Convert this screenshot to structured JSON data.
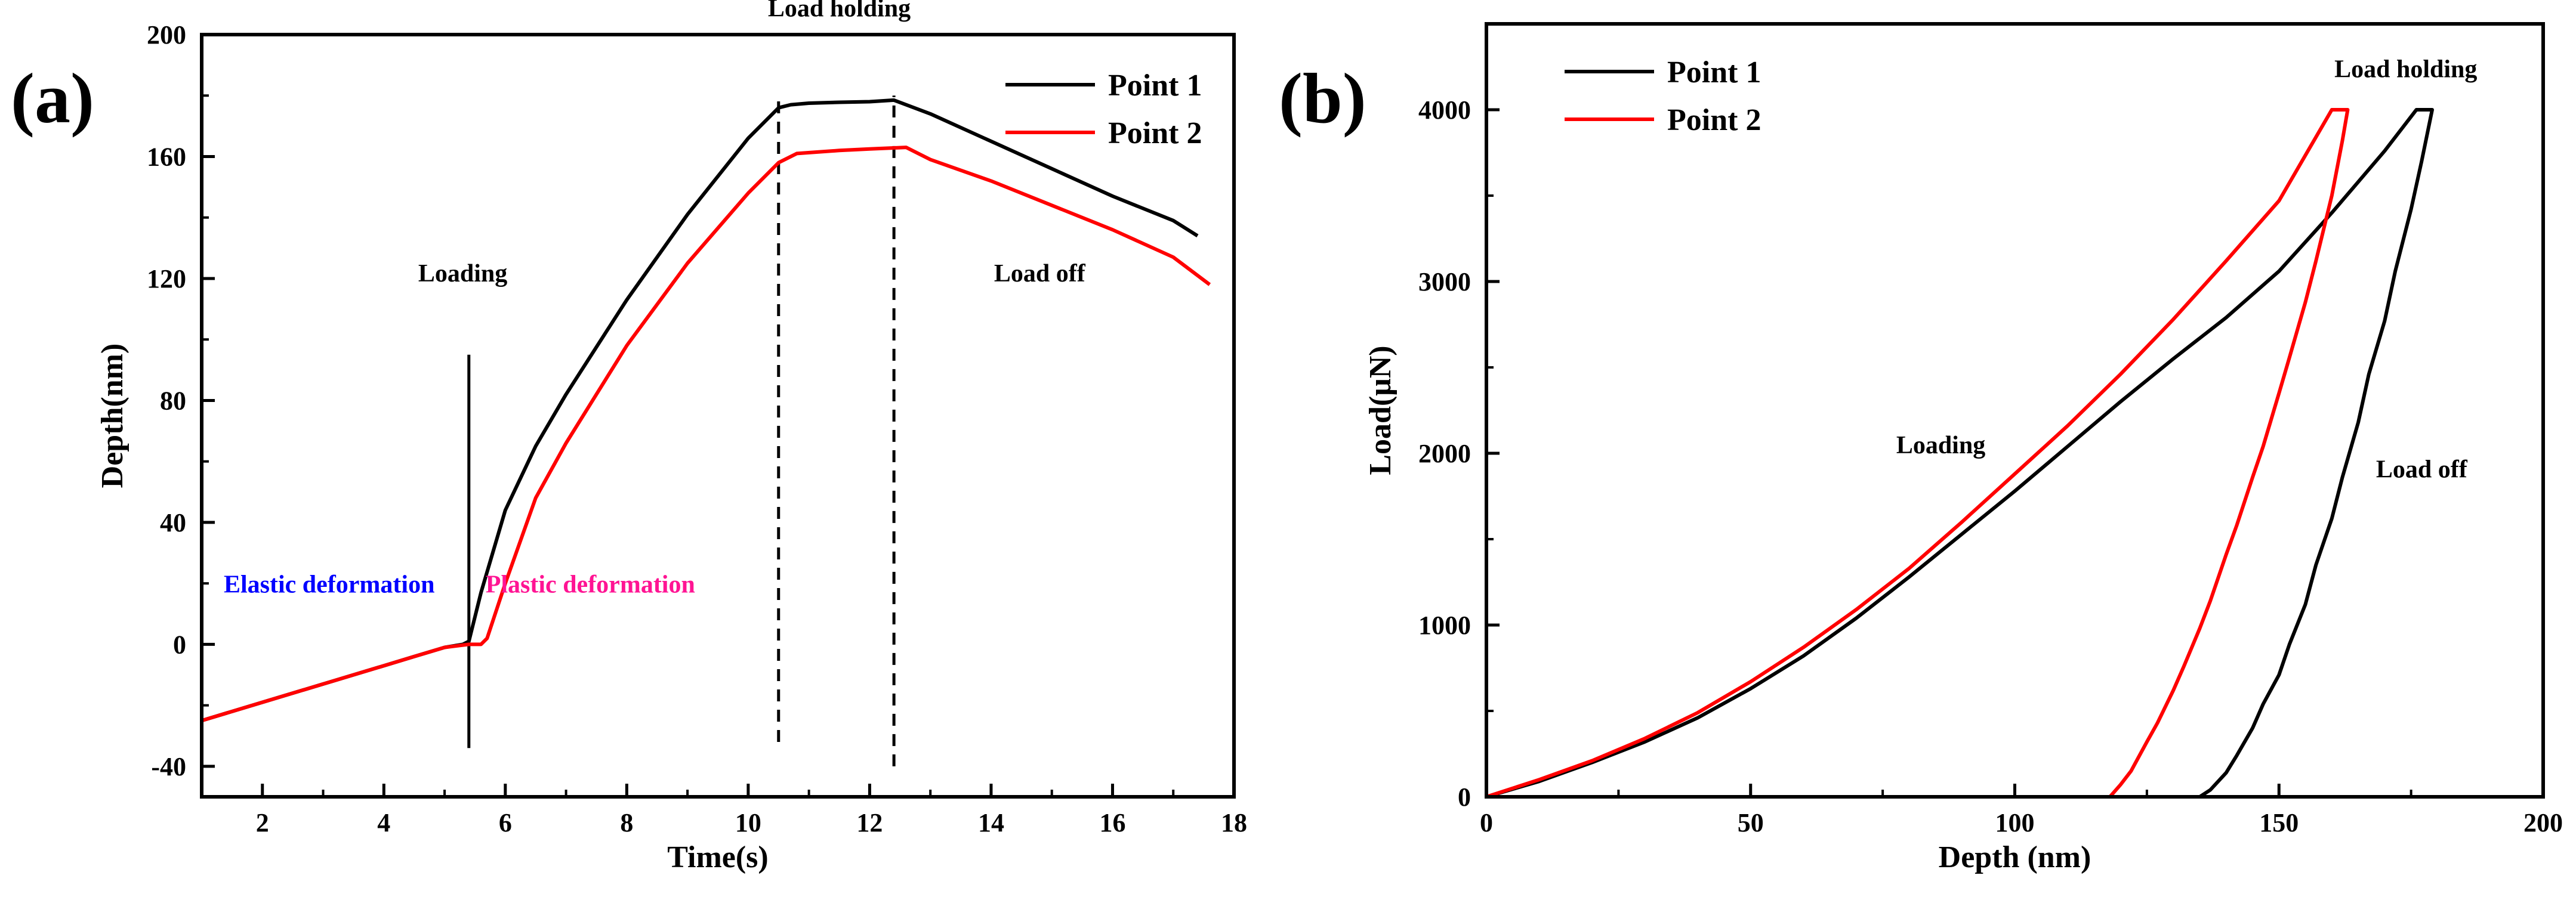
{
  "chart_data": [
    {
      "type": "line",
      "panel_label": "(a)",
      "title": "",
      "xlabel": "Time(s)",
      "ylabel": "Depth(nm)",
      "xlim": [
        1,
        18
      ],
      "ylim": [
        -50,
        200
      ],
      "xticks": [
        2,
        4,
        6,
        8,
        10,
        12,
        14,
        16,
        18
      ],
      "yticks": [
        -40,
        0,
        40,
        80,
        120,
        160,
        200
      ],
      "legend_position": "top-right",
      "series": [
        {
          "name": "Point 1",
          "color": "#000000",
          "x": [
            1.0,
            2.0,
            3.0,
            4.0,
            4.5,
            5.0,
            5.3,
            5.4,
            5.6,
            6.0,
            6.5,
            7.0,
            8.0,
            9.0,
            10.0,
            10.5,
            10.7,
            11.0,
            11.5,
            12.0,
            12.4,
            13.0,
            14.0,
            15.0,
            16.0,
            17.0,
            17.4
          ],
          "y": [
            -25,
            -19,
            -13,
            -7,
            -4,
            -1,
            0,
            1,
            17,
            44,
            65,
            82,
            113,
            141,
            166,
            176,
            177,
            177.5,
            177.8,
            178,
            178.5,
            174,
            165,
            156,
            147,
            139,
            134
          ]
        },
        {
          "name": "Point 2",
          "color": "#ff0000",
          "x": [
            1.0,
            2.0,
            3.0,
            4.0,
            4.5,
            5.0,
            5.4,
            5.6,
            5.7,
            6.0,
            6.5,
            7.0,
            8.0,
            9.0,
            10.0,
            10.5,
            10.8,
            11.5,
            12.0,
            12.6,
            13.0,
            14.0,
            15.0,
            16.0,
            17.0,
            17.6
          ],
          "y": [
            -25,
            -19,
            -13,
            -7,
            -4,
            -1,
            0,
            0,
            2,
            20,
            48,
            66,
            98,
            125,
            148,
            158,
            161,
            162,
            162.5,
            163,
            159,
            152,
            144,
            136,
            127,
            118
          ]
        }
      ],
      "annotations": [
        {
          "text": "Loading",
          "x": 5.3,
          "y": 119,
          "color": "#000000"
        },
        {
          "text": "Load holding",
          "x": 11.5,
          "y": 206,
          "color": "#000000"
        },
        {
          "text": "Load off",
          "x": 14.8,
          "y": 119,
          "color": "#000000"
        },
        {
          "text": "Elastic deformation",
          "x": 3.1,
          "y": 17,
          "color": "#0000ff"
        },
        {
          "text": "Plastic deformation",
          "x": 7.4,
          "y": 17,
          "color": "#ff1493"
        }
      ],
      "vertical_markers": [
        {
          "x": 5.4,
          "y_from": -34,
          "y_to": 95,
          "style": "solid"
        },
        {
          "x": 10.5,
          "y_from": -32,
          "y_to": 180,
          "style": "dashed"
        },
        {
          "x": 12.4,
          "y_from": -40,
          "y_to": 180,
          "style": "dashed"
        }
      ]
    },
    {
      "type": "line",
      "panel_label": "(b)",
      "title": "",
      "xlabel": "Depth (nm)",
      "ylabel": "Load(μN)",
      "xlim": [
        0,
        200
      ],
      "ylim": [
        0,
        4500
      ],
      "xticks": [
        0,
        50,
        100,
        150,
        200
      ],
      "yticks": [
        0,
        1000,
        2000,
        3000,
        4000
      ],
      "legend_position": "top-left",
      "series": [
        {
          "name": "Point 1",
          "color": "#000000",
          "x": [
            0,
            10,
            20,
            30,
            40,
            50,
            60,
            70,
            80,
            90,
            100,
            110,
            120,
            130,
            140,
            150,
            160,
            170,
            176,
            179,
            177,
            175,
            172,
            170,
            167,
            165,
            162,
            160,
            157,
            155,
            152,
            150,
            147,
            145,
            142,
            140,
            137,
            135
          ],
          "y": [
            0,
            90,
            200,
            320,
            460,
            630,
            820,
            1040,
            1280,
            1530,
            1780,
            2040,
            2300,
            2550,
            2790,
            3060,
            3400,
            3760,
            4000,
            4000,
            3700,
            3420,
            3060,
            2770,
            2460,
            2180,
            1860,
            1620,
            1350,
            1120,
            890,
            710,
            540,
            400,
            240,
            140,
            40,
            0
          ]
        },
        {
          "name": "Point 2",
          "color": "#ff0000",
          "x": [
            0,
            10,
            20,
            30,
            40,
            50,
            60,
            70,
            80,
            90,
            100,
            110,
            120,
            130,
            140,
            150,
            160,
            163,
            162,
            160,
            157,
            155,
            152,
            150,
            147,
            145,
            142,
            140,
            137,
            135,
            132,
            130,
            127,
            125,
            122,
            120,
            118
          ],
          "y": [
            0,
            100,
            210,
            340,
            490,
            670,
            870,
            1090,
            1330,
            1600,
            1880,
            2160,
            2460,
            2780,
            3120,
            3470,
            4000,
            4000,
            3820,
            3500,
            3120,
            2880,
            2560,
            2350,
            2040,
            1860,
            1580,
            1410,
            1140,
            980,
            760,
            620,
            430,
            320,
            150,
            70,
            0
          ]
        }
      ],
      "annotations": [
        {
          "text": "Loading",
          "x": 86,
          "y": 2000,
          "color": "#000000"
        },
        {
          "text": "Load holding",
          "x": 174,
          "y": 4190,
          "color": "#000000"
        },
        {
          "text": "Load off",
          "x": 177,
          "y": 1860,
          "color": "#000000"
        }
      ]
    }
  ]
}
